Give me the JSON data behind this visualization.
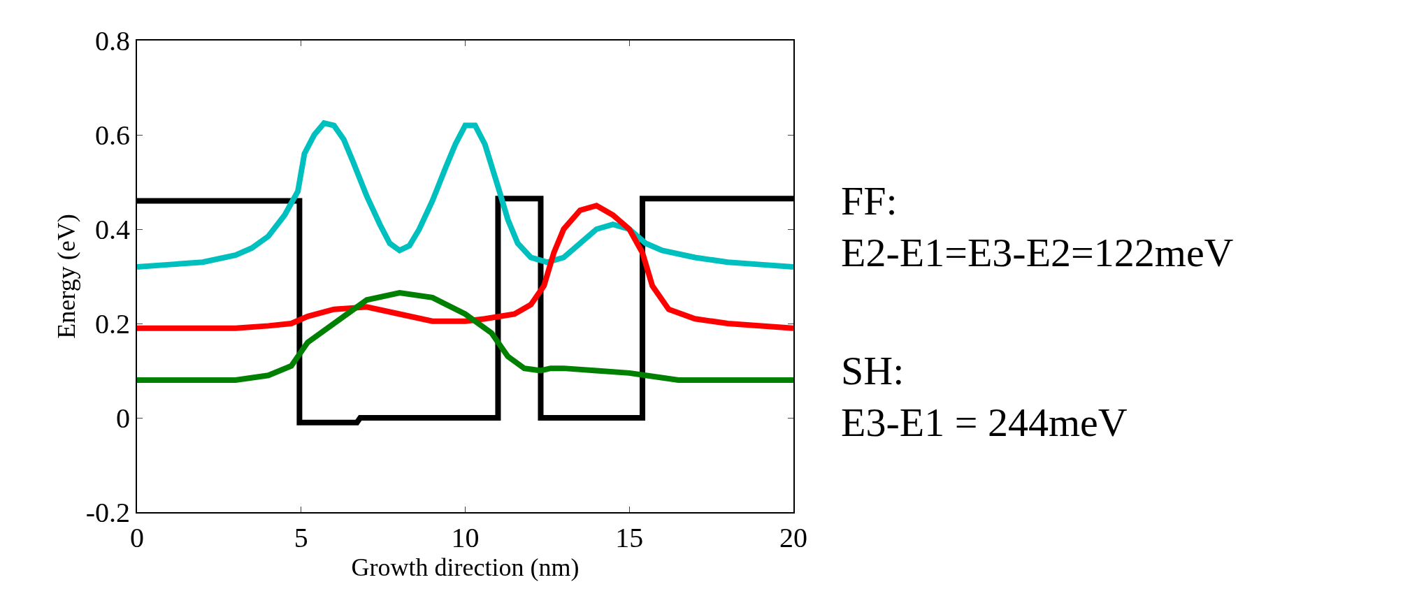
{
  "chart_data": {
    "type": "line",
    "xlabel": "Growth direction (nm)",
    "ylabel": "Energy (eV)",
    "xlim": [
      0,
      20
    ],
    "ylim": [
      -0.2,
      0.8
    ],
    "xticks": [
      0,
      5,
      10,
      15,
      20
    ],
    "yticks": [
      {
        "value": -0.2,
        "label": "-0.2"
      },
      {
        "value": 0,
        "label": "0"
      },
      {
        "value": 0.2,
        "label": "0.2"
      },
      {
        "value": 0.4,
        "label": "0.4"
      },
      {
        "value": 0.6,
        "label": "0.6"
      },
      {
        "value": 0.8,
        "label": "0.8"
      }
    ],
    "marker": "none",
    "line_style": "solid",
    "series": [
      {
        "color": "#000000",
        "x": [
          0,
          4.95,
          4.95,
          6.7,
          6.8,
          11,
          11,
          12.3,
          12.3,
          15.4,
          15.4,
          20
        ],
        "values": [
          0.46,
          0.46,
          -0.01,
          -0.01,
          0,
          0,
          0.465,
          0.465,
          0,
          0,
          0.465,
          0.465
        ]
      },
      {
        "color": "#00bfbf",
        "x": [
          0,
          1,
          2,
          3,
          3.5,
          4,
          4.5,
          4.9,
          5.1,
          5.4,
          5.7,
          6,
          6.3,
          6.6,
          7,
          7.4,
          7.7,
          8,
          8.3,
          8.6,
          9,
          9.4,
          9.7,
          10,
          10.3,
          10.6,
          11,
          11.3,
          11.6,
          12,
          12.5,
          13,
          13.5,
          14,
          14.5,
          15,
          15.5,
          16,
          17,
          18,
          19,
          20
        ],
        "values": [
          0.32,
          0.325,
          0.33,
          0.345,
          0.36,
          0.385,
          0.43,
          0.48,
          0.56,
          0.6,
          0.625,
          0.62,
          0.59,
          0.54,
          0.47,
          0.41,
          0.37,
          0.355,
          0.365,
          0.4,
          0.46,
          0.53,
          0.58,
          0.62,
          0.62,
          0.58,
          0.49,
          0.42,
          0.37,
          0.34,
          0.33,
          0.34,
          0.37,
          0.4,
          0.41,
          0.4,
          0.37,
          0.355,
          0.34,
          0.33,
          0.325,
          0.32
        ]
      },
      {
        "color": "#ff0000",
        "x": [
          0,
          3,
          4,
          4.7,
          5.2,
          6,
          7,
          8,
          9,
          10,
          10.6,
          11.5,
          12,
          12.4,
          12.7,
          13,
          13.5,
          14,
          14.5,
          15,
          15.4,
          15.7,
          16.2,
          17,
          18,
          20
        ],
        "values": [
          0.19,
          0.19,
          0.195,
          0.2,
          0.215,
          0.23,
          0.235,
          0.22,
          0.205,
          0.205,
          0.21,
          0.22,
          0.24,
          0.28,
          0.35,
          0.4,
          0.44,
          0.45,
          0.43,
          0.4,
          0.35,
          0.28,
          0.23,
          0.21,
          0.2,
          0.19
        ]
      },
      {
        "color": "#008000",
        "x": [
          0,
          3,
          4,
          4.7,
          5.2,
          6,
          7,
          8,
          9,
          10,
          10.8,
          11.3,
          11.8,
          12.3,
          12.6,
          13,
          14,
          15,
          15.5,
          16.5,
          20
        ],
        "values": [
          0.08,
          0.08,
          0.09,
          0.11,
          0.16,
          0.2,
          0.25,
          0.265,
          0.255,
          0.22,
          0.18,
          0.13,
          0.105,
          0.1,
          0.105,
          0.105,
          0.1,
          0.095,
          0.09,
          0.08,
          0.08
        ]
      }
    ],
    "annotations": [
      "FF:",
      "E2-E1=E3-E2=122meV",
      "SH:",
      "E3-E1 = 244meV"
    ]
  }
}
